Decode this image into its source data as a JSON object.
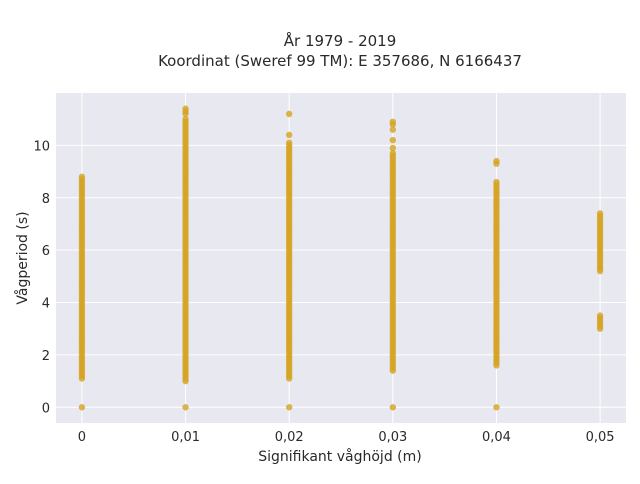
{
  "chart_data": {
    "type": "scatter",
    "title_line1": "År 1979 - 2019",
    "title_line2": "Koordinat (Sweref 99 TM): E 357686, N 6166437",
    "xlabel": "Signifikant våghöjd (m)",
    "ylabel": "Vågperiod (s)",
    "xlim": [
      -0.0025,
      0.0525
    ],
    "ylim": [
      -0.6,
      12.0
    ],
    "x_ticks": [
      0,
      0.01,
      0.02,
      0.03,
      0.04,
      0.05
    ],
    "x_tick_labels": [
      "0",
      "0,01",
      "0,02",
      "0,03",
      "0,04",
      "0,05"
    ],
    "y_ticks": [
      0,
      2,
      4,
      6,
      8,
      10
    ],
    "y_tick_labels": [
      "0",
      "2",
      "4",
      "6",
      "8",
      "10"
    ],
    "grid": true,
    "point_color": "#d4a21f",
    "plot_bg": "#e8e8f0",
    "series": [
      {
        "columns": [
          {
            "x": 0.0,
            "y_zero": true,
            "y_min": 1.1,
            "y_max": 8.8,
            "outliers": []
          },
          {
            "x": 0.01,
            "y_zero": true,
            "y_min": 1.0,
            "y_max": 11.0,
            "outliers": [
              11.4,
              11.3,
              11.2
            ]
          },
          {
            "x": 0.02,
            "y_zero": true,
            "y_min": 1.1,
            "y_max": 10.1,
            "outliers": [
              11.2,
              10.4
            ]
          },
          {
            "x": 0.03,
            "y_zero": true,
            "y_min": 1.4,
            "y_max": 9.7,
            "outliers": [
              10.9,
              10.8,
              10.6,
              10.2,
              9.9
            ]
          },
          {
            "x": 0.04,
            "y_zero": true,
            "y_min": 1.6,
            "y_max": 8.6,
            "outliers": [
              9.4,
              9.3
            ]
          },
          {
            "x": 0.05,
            "y_zero": false,
            "y_min": 5.2,
            "y_max": 7.4,
            "outliers": [],
            "lower_cluster": [
              3.0,
              3.5
            ]
          }
        ]
      }
    ]
  }
}
